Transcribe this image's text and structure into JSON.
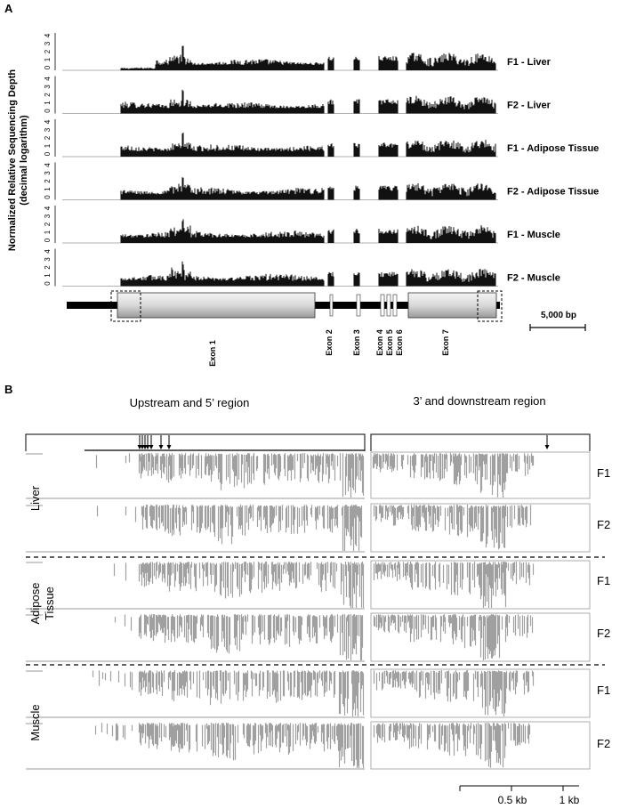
{
  "panel_a": {
    "letter": "A",
    "y_title_line1": "Normalized Relative Sequencing Depth",
    "y_title_line2": "(decimal logarithm)",
    "y_ticks": [
      "0",
      "1",
      "2",
      "3",
      "4"
    ],
    "tracks": [
      {
        "label": "F1 - Liver"
      },
      {
        "label": "F2 - Liver"
      },
      {
        "label": "F1 - Adipose Tissue"
      },
      {
        "label": "F2 - Adipose Tissue"
      },
      {
        "label": "F1 - Muscle"
      },
      {
        "label": "F2 - Muscle"
      }
    ],
    "exons": [
      {
        "label": "Exon 1"
      },
      {
        "label": "Exon 2"
      },
      {
        "label": "Exon 3"
      },
      {
        "label": "Exon 4"
      },
      {
        "label": "Exon 5"
      },
      {
        "label": "Exon 6"
      },
      {
        "label": "Exon 7"
      }
    ],
    "scale_bar_label": "5,000 bp"
  },
  "panel_b": {
    "letter": "B",
    "left_region_title": "Upstream and 5’ region",
    "right_region_title": "3’ and downstream region",
    "tissues": [
      {
        "label": "Liver",
        "samples": [
          "F1",
          "F2"
        ]
      },
      {
        "label": "Adipose Tissue",
        "label_lines": [
          "Adipose",
          "Tissue"
        ],
        "samples": [
          "F1",
          "F2"
        ]
      },
      {
        "label": "Muscle",
        "samples": [
          "F1",
          "F2"
        ]
      }
    ],
    "scale_ticks": [
      "0.5 kb",
      "1 kb"
    ]
  },
  "colors": {
    "coverage": "#111111",
    "reads": "#a0a0a0",
    "exon_fill": "#e6e6e6"
  }
}
